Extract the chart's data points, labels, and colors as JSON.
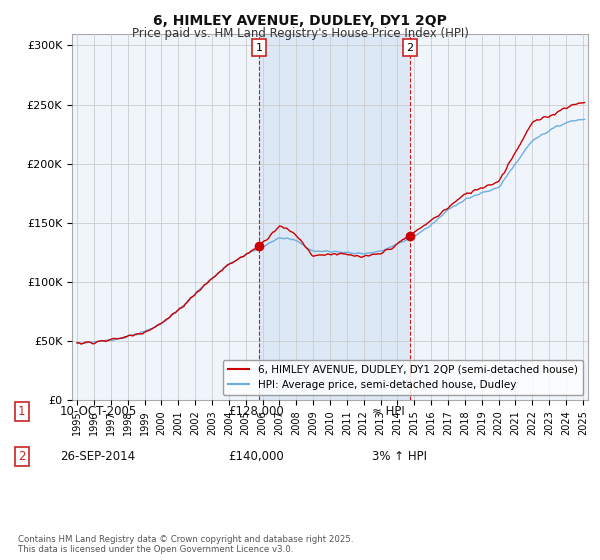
{
  "title": "6, HIMLEY AVENUE, DUDLEY, DY1 2QP",
  "subtitle": "Price paid vs. HM Land Registry's House Price Index (HPI)",
  "background_color": "#ffffff",
  "plot_bg_color": "#f0f5fc",
  "shaded_region_color": "#dce8f5",
  "grid_color": "#cccccc",
  "sale1_date": "10-OCT-2005",
  "sale1_price": 128000,
  "sale1_hpi": "≈ HPI",
  "sale2_date": "26-SEP-2014",
  "sale2_price": 140000,
  "sale2_hpi": "3% ↑ HPI",
  "legend_line1": "6, HIMLEY AVENUE, DUDLEY, DY1 2QP (semi-detached house)",
  "legend_line2": "HPI: Average price, semi-detached house, Dudley",
  "footer": "Contains HM Land Registry data © Crown copyright and database right 2025.\nThis data is licensed under the Open Government Licence v3.0.",
  "hpi_color": "#6daee0",
  "price_color": "#cc0000",
  "vline_color": "#cc0000",
  "marker_border_color": "#cc2222",
  "ylim": [
    0,
    310000
  ],
  "yticks": [
    0,
    50000,
    100000,
    150000,
    200000,
    250000,
    300000
  ],
  "ytick_labels": [
    "£0",
    "£50K",
    "£100K",
    "£150K",
    "£200K",
    "£250K",
    "£300K"
  ],
  "xmin": 1994.7,
  "xmax": 2025.3,
  "sale1_x": 2005.78,
  "sale2_x": 2014.73,
  "hpi_base_years": [
    1995,
    1996,
    1997,
    1998,
    1999,
    2000,
    2001,
    2002,
    2003,
    2004,
    2005,
    2006,
    2007,
    2008,
    2009,
    2010,
    2011,
    2012,
    2013,
    2014,
    2015,
    2016,
    2017,
    2018,
    2019,
    2020,
    2021,
    2022,
    2023,
    2024,
    2025
  ],
  "hpi_base_vals": [
    48000,
    49500,
    51000,
    54000,
    58000,
    65000,
    76000,
    90000,
    103000,
    115000,
    123000,
    130000,
    138000,
    135000,
    126000,
    126000,
    125000,
    124000,
    126000,
    132000,
    139000,
    148000,
    161000,
    170000,
    175000,
    180000,
    200000,
    220000,
    228000,
    235000,
    238000
  ],
  "price_base_years": [
    1995,
    1996,
    1997,
    1998,
    1999,
    2000,
    2001,
    2002,
    2003,
    2004,
    2005,
    2006,
    2007,
    2008,
    2009,
    2010,
    2011,
    2012,
    2013,
    2014,
    2015,
    2016,
    2017,
    2018,
    2019,
    2020,
    2021,
    2022,
    2023,
    2024,
    2025
  ],
  "price_base_vals": [
    48000,
    49500,
    51000,
    54000,
    58000,
    65000,
    76000,
    90000,
    103000,
    115000,
    123000,
    133000,
    148000,
    140000,
    122000,
    124000,
    123000,
    121000,
    124000,
    132000,
    142000,
    152000,
    163000,
    174000,
    180000,
    185000,
    210000,
    235000,
    240000,
    248000,
    252000
  ]
}
